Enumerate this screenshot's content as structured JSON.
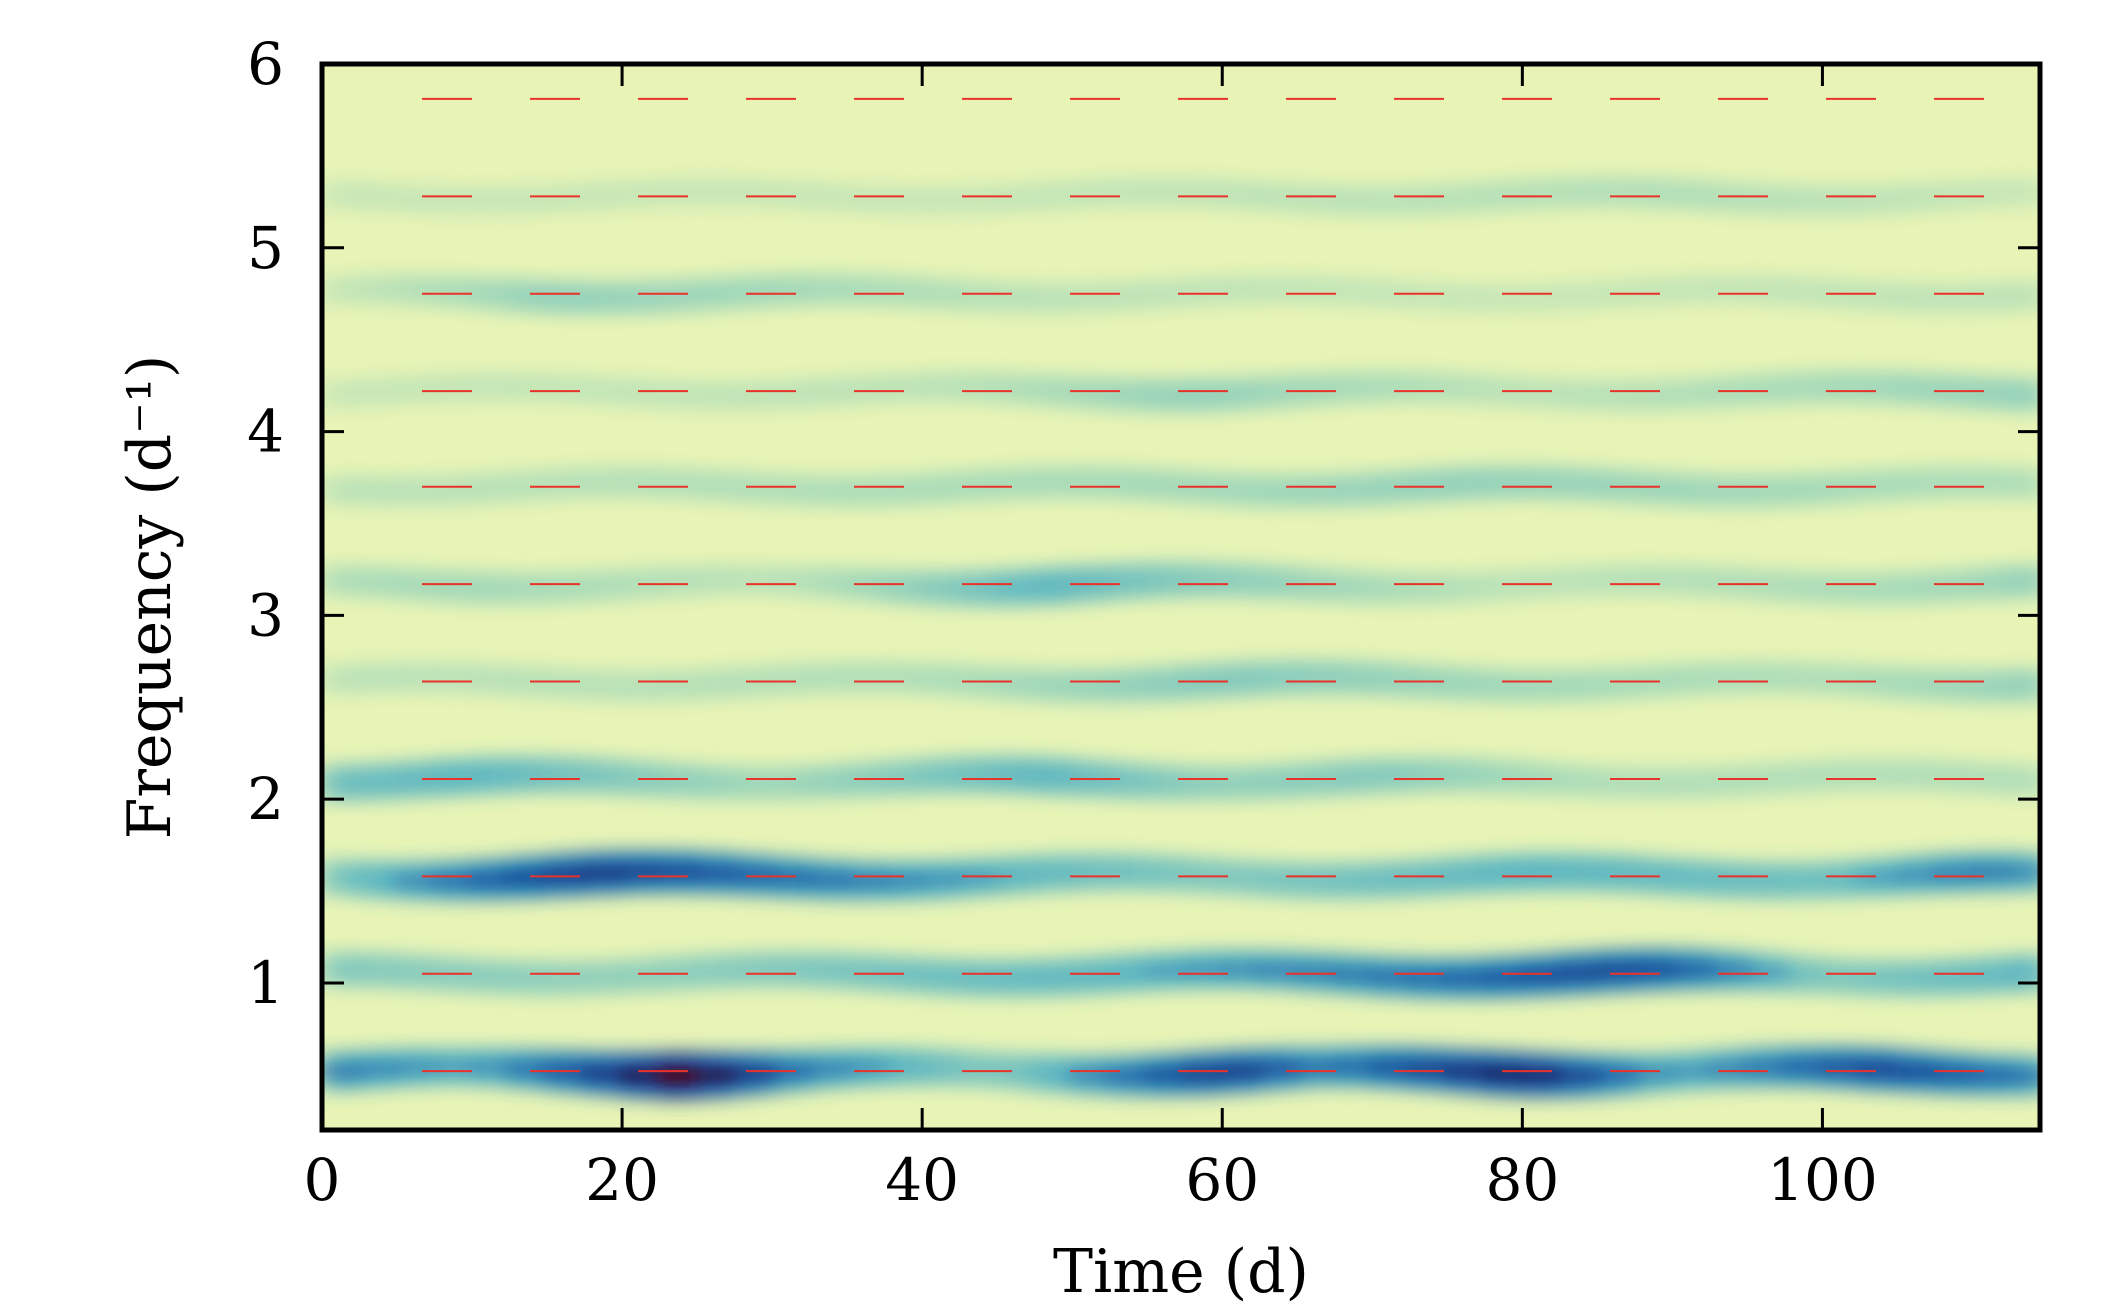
{
  "chart_data": {
    "type": "heatmap",
    "title": "",
    "xlabel": "Time (d)",
    "ylabel": "Frequency (d⁻¹)",
    "xlim": [
      0,
      114.5
    ],
    "ylim": [
      0.2,
      6.0
    ],
    "x_ticks": [
      0,
      20,
      40,
      60,
      80,
      100
    ],
    "x_tick_labels": [
      "0",
      "20",
      "40",
      "60",
      "80",
      "100"
    ],
    "y_ticks": [
      1,
      2,
      3,
      4,
      5,
      6
    ],
    "y_tick_labels": [
      "1",
      "2",
      "3",
      "4",
      "5",
      "6"
    ],
    "grid": false,
    "colormap": [
      "#fbfdd0",
      "#e8f4b6",
      "#bfe2b6",
      "#7ecbbb",
      "#3ea8c4",
      "#2378b4",
      "#1d4d9d",
      "#1a2a6c",
      "#4a0a2a"
    ],
    "reference_lines": {
      "style": "dashed",
      "color": "#e8322a",
      "y": [
        0.52,
        1.05,
        1.58,
        2.11,
        2.64,
        3.17,
        3.7,
        4.22,
        4.75,
        5.28,
        5.81
      ]
    },
    "ridges": [
      {
        "y": 0.52,
        "points": [
          [
            0,
            0.55
          ],
          [
            10,
            0.45
          ],
          [
            18,
            0.7
          ],
          [
            24,
            1.0
          ],
          [
            32,
            0.55
          ],
          [
            45,
            0.35
          ],
          [
            60,
            0.75
          ],
          [
            67,
            0.55
          ],
          [
            80,
            0.85
          ],
          [
            90,
            0.45
          ],
          [
            104,
            0.7
          ],
          [
            114.5,
            0.55
          ]
        ]
      },
      {
        "y": 1.05,
        "points": [
          [
            0,
            0.35
          ],
          [
            20,
            0.3
          ],
          [
            40,
            0.4
          ],
          [
            55,
            0.45
          ],
          [
            75,
            0.6
          ],
          [
            85,
            0.7
          ],
          [
            90,
            0.65
          ],
          [
            100,
            0.35
          ],
          [
            114.5,
            0.45
          ]
        ]
      },
      {
        "y": 1.58,
        "points": [
          [
            0,
            0.35
          ],
          [
            10,
            0.6
          ],
          [
            18,
            0.75
          ],
          [
            30,
            0.6
          ],
          [
            45,
            0.45
          ],
          [
            60,
            0.35
          ],
          [
            80,
            0.45
          ],
          [
            100,
            0.4
          ],
          [
            110,
            0.55
          ],
          [
            114.5,
            0.5
          ]
        ]
      },
      {
        "y": 2.11,
        "points": [
          [
            0,
            0.4
          ],
          [
            10,
            0.45
          ],
          [
            30,
            0.25
          ],
          [
            48,
            0.45
          ],
          [
            60,
            0.3
          ],
          [
            70,
            0.35
          ],
          [
            85,
            0.2
          ],
          [
            114.5,
            0.2
          ]
        ]
      },
      {
        "y": 2.64,
        "points": [
          [
            0,
            0.15
          ],
          [
            40,
            0.2
          ],
          [
            60,
            0.35
          ],
          [
            80,
            0.25
          ],
          [
            100,
            0.2
          ],
          [
            114.5,
            0.3
          ]
        ]
      },
      {
        "y": 3.17,
        "points": [
          [
            0,
            0.2
          ],
          [
            10,
            0.25
          ],
          [
            30,
            0.15
          ],
          [
            48,
            0.45
          ],
          [
            57,
            0.35
          ],
          [
            80,
            0.15
          ],
          [
            110,
            0.25
          ],
          [
            114.5,
            0.3
          ]
        ]
      },
      {
        "y": 3.7,
        "points": [
          [
            0,
            0.15
          ],
          [
            30,
            0.2
          ],
          [
            60,
            0.25
          ],
          [
            75,
            0.3
          ],
          [
            95,
            0.25
          ],
          [
            114.5,
            0.2
          ]
        ]
      },
      {
        "y": 4.22,
        "points": [
          [
            0,
            0.1
          ],
          [
            40,
            0.15
          ],
          [
            58,
            0.3
          ],
          [
            80,
            0.15
          ],
          [
            114.5,
            0.3
          ]
        ]
      },
      {
        "y": 4.75,
        "points": [
          [
            0,
            0.1
          ],
          [
            15,
            0.3
          ],
          [
            30,
            0.25
          ],
          [
            50,
            0.15
          ],
          [
            80,
            0.1
          ],
          [
            114.5,
            0.15
          ]
        ]
      },
      {
        "y": 5.28,
        "points": [
          [
            0,
            0.1
          ],
          [
            40,
            0.1
          ],
          [
            90,
            0.2
          ],
          [
            114.5,
            0.1
          ]
        ]
      }
    ]
  }
}
